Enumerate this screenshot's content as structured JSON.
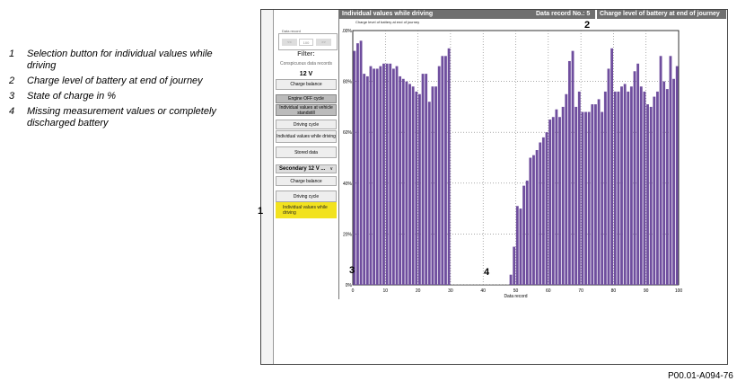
{
  "legend": [
    {
      "num": "1",
      "text": "Selection button for individual values while driving"
    },
    {
      "num": "2",
      "text": "Charge level of battery at end of journey"
    },
    {
      "num": "3",
      "text": "State of charge in %"
    },
    {
      "num": "4",
      "text": "Missing measurement values or completely discharged battery"
    }
  ],
  "sidebar": {
    "data_record_title": "Data record",
    "data_record_prev": "<<",
    "data_record_value": "100",
    "data_record_next": ">>",
    "filter_label": "Filter:",
    "conspicuous_label": "Conspicuous data records",
    "voltage_label": "12 V",
    "buttons": [
      {
        "label": "Charge balance"
      },
      {
        "label": "Engine OFF cycle"
      },
      {
        "label": "Individual values at vehicle standstill"
      },
      {
        "label": "Driving cycle"
      },
      {
        "label": "Individual values while driving"
      },
      {
        "label": "Stored data"
      }
    ],
    "secondary_select": "Secondary 12 V ...",
    "secondary_buttons": [
      {
        "label": "Charge balance"
      },
      {
        "label": "Driving cycle"
      },
      {
        "label": "Individual values while driving"
      }
    ]
  },
  "header": {
    "title": "Individual values while driving",
    "data_record": "Data record No.: 5",
    "charge_level": "Charge level of battery at end of journey"
  },
  "chart_subtitle": "Charge level of battery at end of journey",
  "callouts": {
    "c1": "1",
    "c2": "2",
    "c3": "3",
    "c4": "4"
  },
  "figure_code": "P00.01-A094-76",
  "colors": {
    "bar": "#6f4e9e",
    "header": "#6f6f6f",
    "active": "#f2e21e"
  },
  "chart_data": {
    "type": "bar",
    "title": "Charge level of battery at end of journey",
    "xlabel": "Data record",
    "ylabel": "",
    "xlim": [
      0,
      100
    ],
    "ylim": [
      0,
      100
    ],
    "x_ticks": [
      0,
      10,
      20,
      30,
      40,
      50,
      60,
      70,
      80,
      90,
      100
    ],
    "y_ticks": [
      {
        "value": 0,
        "label": "0%"
      },
      {
        "value": 20,
        "label": "20%"
      },
      {
        "value": 40,
        "label": "40%"
      },
      {
        "value": 60,
        "label": "60%"
      },
      {
        "value": 80,
        "label": "80%"
      },
      {
        "value": 100,
        "label": "100%"
      }
    ],
    "grid": true,
    "x": [
      1,
      2,
      3,
      4,
      5,
      6,
      7,
      8,
      9,
      10,
      11,
      12,
      13,
      14,
      15,
      16,
      17,
      18,
      19,
      20,
      21,
      22,
      23,
      24,
      25,
      26,
      27,
      28,
      29,
      30,
      31,
      32,
      33,
      34,
      35,
      36,
      37,
      38,
      39,
      40,
      41,
      42,
      43,
      44,
      45,
      46,
      47,
      48,
      49,
      50,
      51,
      52,
      53,
      54,
      55,
      56,
      57,
      58,
      59,
      60,
      61,
      62,
      63,
      64,
      65,
      66,
      67,
      68,
      69,
      70,
      71,
      72,
      73,
      74,
      75,
      76,
      77,
      78,
      79,
      80,
      81,
      82,
      83,
      84,
      85,
      86,
      87,
      88,
      89,
      90,
      91,
      92,
      93,
      94,
      95,
      96,
      97,
      98,
      99,
      100
    ],
    "values": [
      92,
      95,
      96,
      83,
      82,
      86,
      85,
      85,
      86,
      87,
      87,
      87,
      85,
      86,
      82,
      81,
      80,
      79,
      78,
      76,
      75,
      83,
      83,
      72,
      78,
      78,
      86,
      90,
      90,
      93,
      0,
      0,
      0,
      0,
      0,
      0,
      0,
      0,
      0,
      0,
      0,
      0,
      0,
      0,
      0,
      0,
      0,
      0,
      4,
      15,
      31,
      30,
      39,
      41,
      50,
      51,
      53,
      56,
      58,
      60,
      65,
      66,
      69,
      66,
      70,
      75,
      88,
      92,
      70,
      76,
      68,
      68,
      68,
      71,
      71,
      73,
      68,
      76,
      85,
      93,
      76,
      76,
      78,
      79,
      76,
      78,
      84,
      87,
      78,
      76,
      71,
      70,
      74,
      76,
      90,
      80,
      77,
      90,
      81,
      86
    ]
  }
}
